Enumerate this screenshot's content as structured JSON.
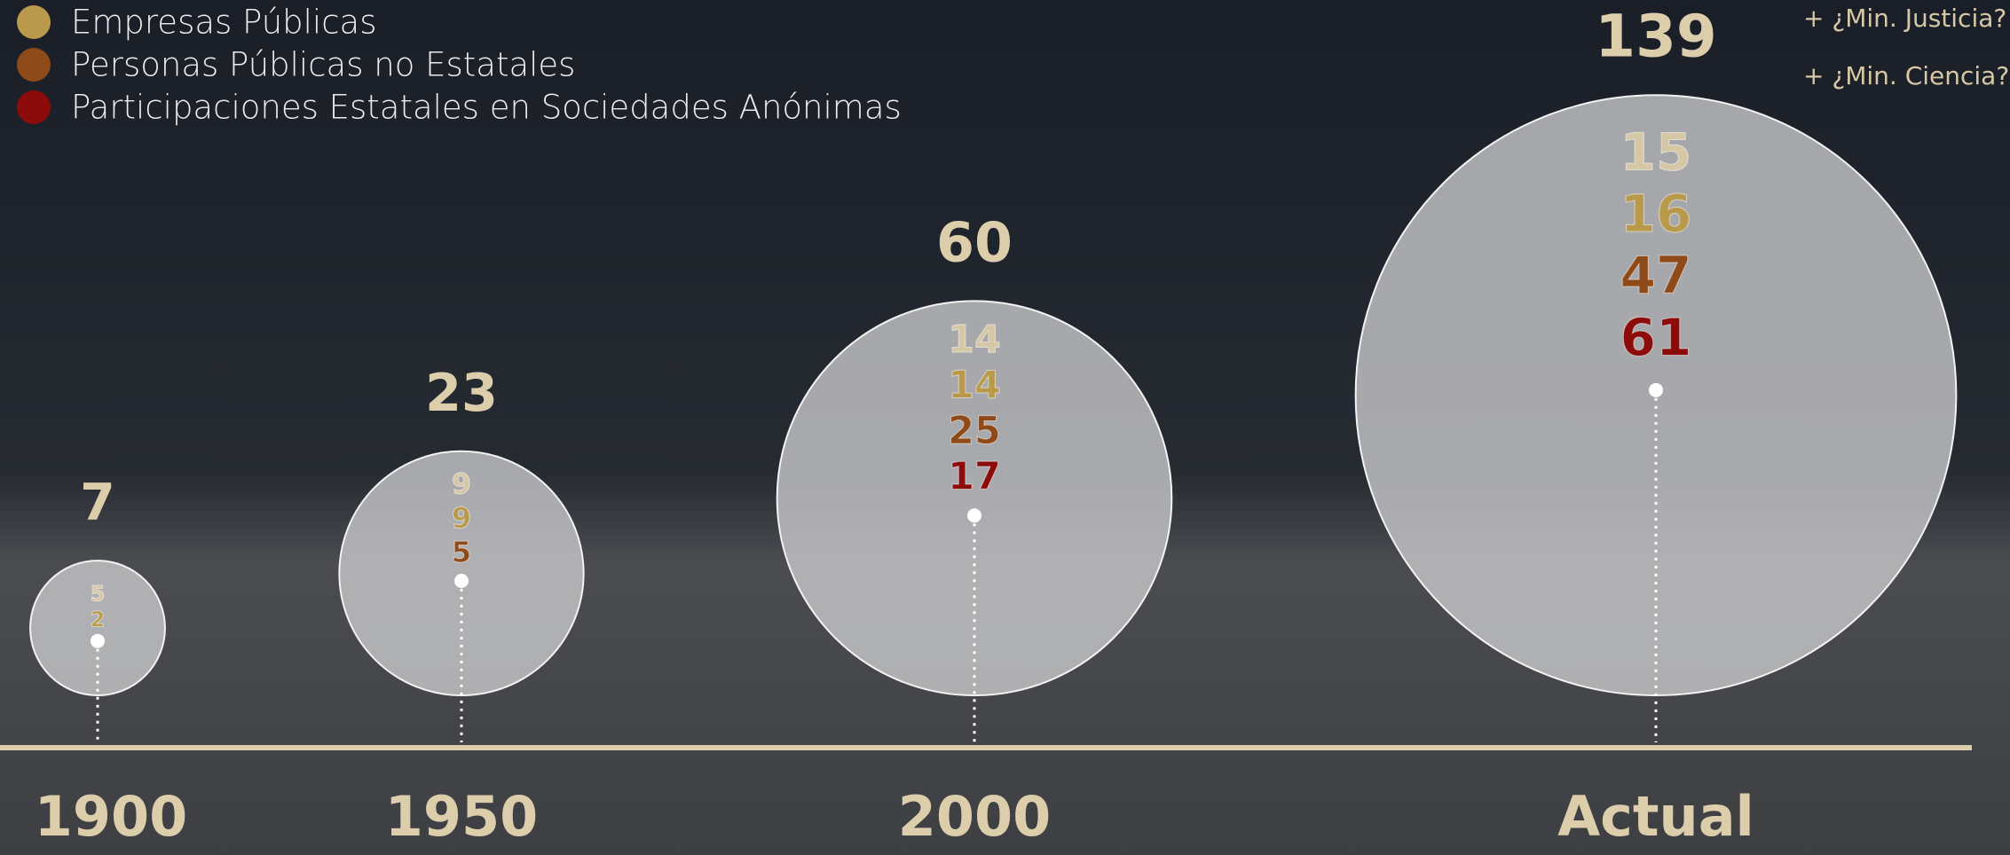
{
  "chart_data": {
    "type": "bubble",
    "categories": [
      "1900",
      "1950",
      "2000",
      "Actual"
    ],
    "totals": [
      7,
      23,
      60,
      139
    ],
    "total_color": "#dccdab",
    "series": [
      {
        "color": "#d6c8a6",
        "values": [
          5,
          9,
          14,
          15
        ]
      },
      {
        "name": "Empresas Públicas",
        "color": "#b99a4c",
        "values": [
          2,
          9,
          14,
          16
        ]
      },
      {
        "name": "Personas Públicas no Estatales",
        "color": "#8f4a1a",
        "values": [
          null,
          5,
          25,
          47
        ]
      },
      {
        "name": "Participaciones Estatales en Sociedades Anónimas",
        "color": "#8c0c0c",
        "values": [
          null,
          null,
          17,
          61
        ]
      }
    ],
    "annotations": [
      "+ ¿Min. Justicia?",
      "+ ¿Min. Ciencia?"
    ],
    "legend": "top-left"
  }
}
